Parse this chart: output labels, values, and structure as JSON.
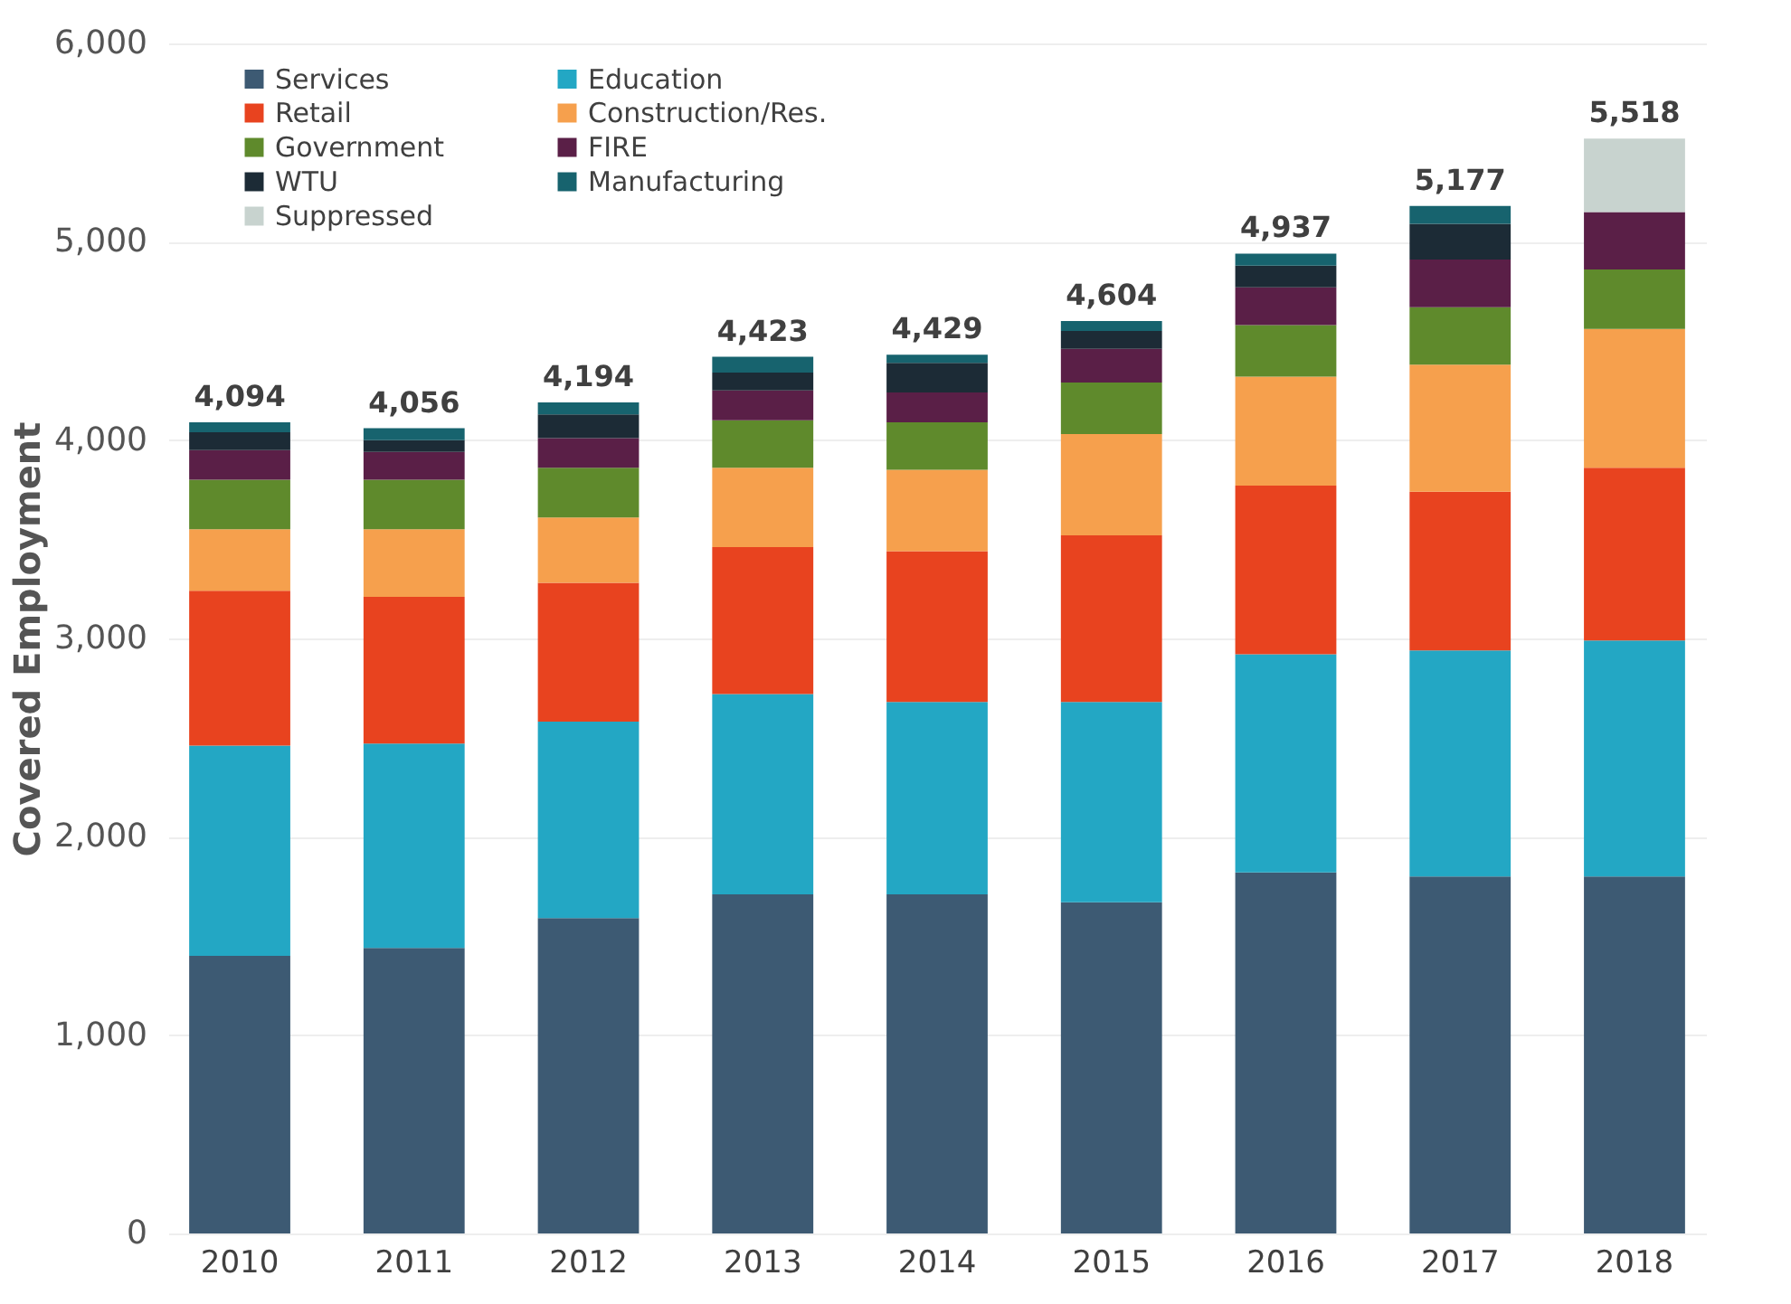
{
  "chart_data": {
    "type": "bar",
    "stacked": true,
    "ylabel": "Covered Employment",
    "categories": [
      "2010",
      "2011",
      "2012",
      "2013",
      "2014",
      "2015",
      "2016",
      "2017",
      "2018"
    ],
    "series": [
      {
        "name": "Services",
        "color": "#3d5a73",
        "values": [
          1400,
          1440,
          1590,
          1710,
          1710,
          1670,
          1820,
          1800,
          1800
        ]
      },
      {
        "name": "Education",
        "color": "#23a7c4",
        "values": [
          1060,
          1030,
          990,
          1010,
          970,
          1010,
          1100,
          1140,
          1190
        ]
      },
      {
        "name": "Retail",
        "color": "#e8431f",
        "values": [
          780,
          740,
          700,
          740,
          760,
          840,
          850,
          800,
          870
        ]
      },
      {
        "name": "Construction/Res.",
        "color": "#f6a04d",
        "values": [
          310,
          340,
          330,
          400,
          410,
          510,
          550,
          640,
          700
        ]
      },
      {
        "name": "Government",
        "color": "#5f8a2c",
        "values": [
          250,
          250,
          250,
          240,
          240,
          260,
          260,
          290,
          300
        ]
      },
      {
        "name": "FIRE",
        "color": "#5a1f47",
        "values": [
          150,
          140,
          150,
          150,
          150,
          170,
          190,
          240,
          290
        ]
      },
      {
        "name": "WTU",
        "color": "#1c2b36",
        "values": [
          90,
          60,
          120,
          90,
          150,
          90,
          110,
          180,
          null
        ]
      },
      {
        "name": "Manufacturing",
        "color": "#17636e",
        "values": [
          50,
          60,
          60,
          80,
          40,
          50,
          60,
          90,
          null
        ]
      },
      {
        "name": "Suppressed",
        "color": "#c8d3cf",
        "values": [
          null,
          null,
          null,
          null,
          null,
          null,
          null,
          null,
          370
        ]
      }
    ],
    "totals": [
      "4,094",
      "4,056",
      "4,194",
      "4,423",
      "4,429",
      "4,604",
      "4,937",
      "5,177",
      "5,518"
    ],
    "ylim": [
      0,
      6000
    ],
    "yticks": [
      0,
      {
        "value": 1000,
        "label": "1,000"
      },
      {
        "value": 2000,
        "label": "2,000"
      },
      {
        "value": 3000,
        "label": "3,000"
      },
      {
        "value": 4000,
        "label": "4,000"
      },
      {
        "value": 5000,
        "label": "5,000"
      },
      {
        "value": 6000,
        "label": "6,000"
      }
    ],
    "grid": "y",
    "legend": "top left"
  }
}
